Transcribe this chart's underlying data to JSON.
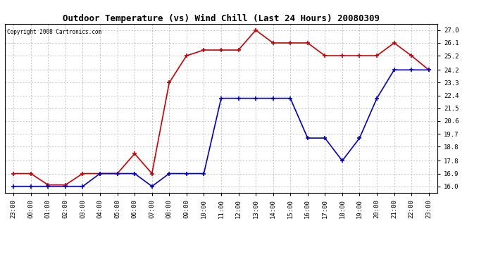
{
  "title": "Outdoor Temperature (vs) Wind Chill (Last 24 Hours) 20080309",
  "copyright": "Copyright 2008 Cartronics.com",
  "x_labels": [
    "23:00",
    "00:00",
    "01:00",
    "02:00",
    "03:00",
    "04:00",
    "05:00",
    "06:00",
    "07:00",
    "08:00",
    "09:00",
    "10:00",
    "11:00",
    "12:00",
    "13:00",
    "14:00",
    "15:00",
    "16:00",
    "17:00",
    "18:00",
    "19:00",
    "20:00",
    "21:00",
    "22:00",
    "23:00"
  ],
  "red_data": [
    16.9,
    16.9,
    16.1,
    16.1,
    16.9,
    16.9,
    16.9,
    18.3,
    16.9,
    23.3,
    25.2,
    25.6,
    25.6,
    25.6,
    27.0,
    26.1,
    26.1,
    26.1,
    25.2,
    25.2,
    25.2,
    25.2,
    26.1,
    25.2,
    24.2
  ],
  "blue_data": [
    16.0,
    16.0,
    16.0,
    16.0,
    16.0,
    16.9,
    16.9,
    16.9,
    16.0,
    16.9,
    16.9,
    16.9,
    22.2,
    22.2,
    22.2,
    22.2,
    22.2,
    19.4,
    19.4,
    17.8,
    19.4,
    22.2,
    24.2,
    24.2,
    24.2
  ],
  "red_color": "#cc0000",
  "blue_color": "#0000cc",
  "bg_color": "#ffffff",
  "grid_color": "#aaaaaa",
  "ylim_min": 15.55,
  "ylim_max": 27.45,
  "yticks": [
    16.0,
    16.9,
    17.8,
    18.8,
    19.7,
    20.6,
    21.5,
    22.4,
    23.3,
    24.2,
    25.2,
    26.1,
    27.0
  ],
  "marker": "+",
  "marker_size": 4,
  "line_width": 1.2,
  "title_fontsize": 9,
  "tick_fontsize": 6.5,
  "copyright_fontsize": 5.5
}
